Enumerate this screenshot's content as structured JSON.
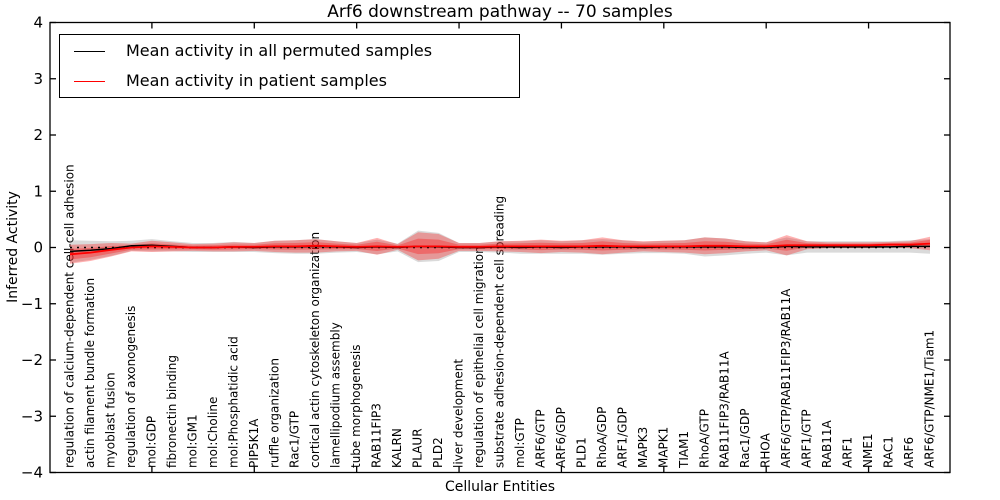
{
  "chart_data": {
    "type": "line",
    "title": "Arf6 downstream pathway -- 70 samples",
    "xlabel": "Cellular Entities",
    "ylabel": "Inferred Activity",
    "ylim": [
      -4,
      4
    ],
    "yticks": [
      -4,
      -3,
      -2,
      -1,
      0,
      1,
      2,
      3,
      4
    ],
    "xtick_positions": [
      5,
      10,
      15,
      20,
      25,
      30,
      35,
      40
    ],
    "grid": false,
    "legend": {
      "position": "upper left",
      "entries": [
        {
          "label": "Mean activity in all permuted samples",
          "color": "#000000"
        },
        {
          "label": "Mean activity in patient samples",
          "color": "#ff0000"
        }
      ]
    },
    "zero_line": {
      "y": 0,
      "style": "dotted",
      "color": "#000000"
    },
    "categories": [
      "regulation of calcium-dependent cell-cell adhesion",
      "actin filament bundle formation",
      "myoblast fusion",
      "regulation of axonogenesis",
      "mol:GDP",
      "fibronectin binding",
      "mol:GM1",
      "mol:Choline",
      "mol:Phosphatidic acid",
      "PIP5K1A",
      "ruffle organization",
      "Rac1/GTP",
      "cortical actin cytoskeleton organization",
      "lamellipodium assembly",
      "tube morphogenesis",
      "RAB11FIP3",
      "KALRN",
      "PLAUR",
      "PLD2",
      "liver development",
      "regulation of epithelial cell migration",
      "substrate adhesion-dependent cell spreading",
      "mol:GTP",
      "ARF6/GTP",
      "ARF6/GDP",
      "PLD1",
      "RhoA/GDP",
      "ARF1/GDP",
      "MAPK3",
      "MAPK1",
      "TIAM1",
      "RhoA/GTP",
      "RAB11FIP3/RAB11A",
      "Rac1/GDP",
      "RHOA",
      "ARF6/GTP/RAB11FIP3/RAB11A",
      "ARF1/GTP",
      "RAB11A",
      "ARF1",
      "NME1",
      "RAC1",
      "ARF6",
      "ARF6/GTP/NME1/Tiam1"
    ],
    "series": [
      {
        "name": "Mean activity in all permuted samples",
        "color": "#000000",
        "band_color": "#8c8c8c",
        "band_opacity": 0.32,
        "mean": [
          -0.07,
          -0.05,
          -0.02,
          0.03,
          0.04,
          0.02,
          0.0,
          0.0,
          0.01,
          0.0,
          0.01,
          0.01,
          0.02,
          0.01,
          0.0,
          0.01,
          0.0,
          0.02,
          0.01,
          0.0,
          0.0,
          0.01,
          0.0,
          0.01,
          0.0,
          0.01,
          0.01,
          0.01,
          0.0,
          0.01,
          0.01,
          0.01,
          0.01,
          0.0,
          0.0,
          0.02,
          0.01,
          0.01,
          0.01,
          0.01,
          0.01,
          0.02,
          0.02
        ],
        "std": [
          0.2,
          0.17,
          0.13,
          0.09,
          0.11,
          0.09,
          0.08,
          0.08,
          0.09,
          0.08,
          0.11,
          0.12,
          0.13,
          0.1,
          0.08,
          0.13,
          0.07,
          0.28,
          0.25,
          0.08,
          0.08,
          0.1,
          0.11,
          0.12,
          0.11,
          0.12,
          0.14,
          0.12,
          0.1,
          0.11,
          0.12,
          0.17,
          0.15,
          0.11,
          0.09,
          0.16,
          0.1,
          0.1,
          0.1,
          0.1,
          0.1,
          0.11,
          0.13
        ]
      },
      {
        "name": "Mean activity in patient samples",
        "color": "#ff0000",
        "band_color": "#ff0000",
        "band_opacity": 0.3,
        "mean": [
          -0.12,
          -0.09,
          -0.04,
          0.0,
          0.02,
          0.01,
          0.0,
          0.0,
          0.01,
          0.01,
          0.02,
          0.02,
          0.03,
          0.02,
          0.01,
          0.02,
          0.01,
          0.02,
          0.02,
          0.01,
          0.01,
          0.02,
          0.02,
          0.02,
          0.02,
          0.02,
          0.03,
          0.02,
          0.02,
          0.02,
          0.02,
          0.03,
          0.03,
          0.02,
          0.02,
          0.04,
          0.04,
          0.04,
          0.04,
          0.04,
          0.05,
          0.05,
          0.07
        ],
        "std": [
          0.17,
          0.15,
          0.12,
          0.07,
          0.1,
          0.08,
          0.06,
          0.07,
          0.08,
          0.07,
          0.1,
          0.11,
          0.12,
          0.09,
          0.07,
          0.15,
          0.05,
          0.25,
          0.22,
          0.07,
          0.07,
          0.09,
          0.1,
          0.12,
          0.1,
          0.11,
          0.15,
          0.11,
          0.09,
          0.1,
          0.11,
          0.15,
          0.13,
          0.09,
          0.07,
          0.18,
          0.07,
          0.05,
          0.05,
          0.05,
          0.05,
          0.06,
          0.12
        ]
      }
    ]
  }
}
